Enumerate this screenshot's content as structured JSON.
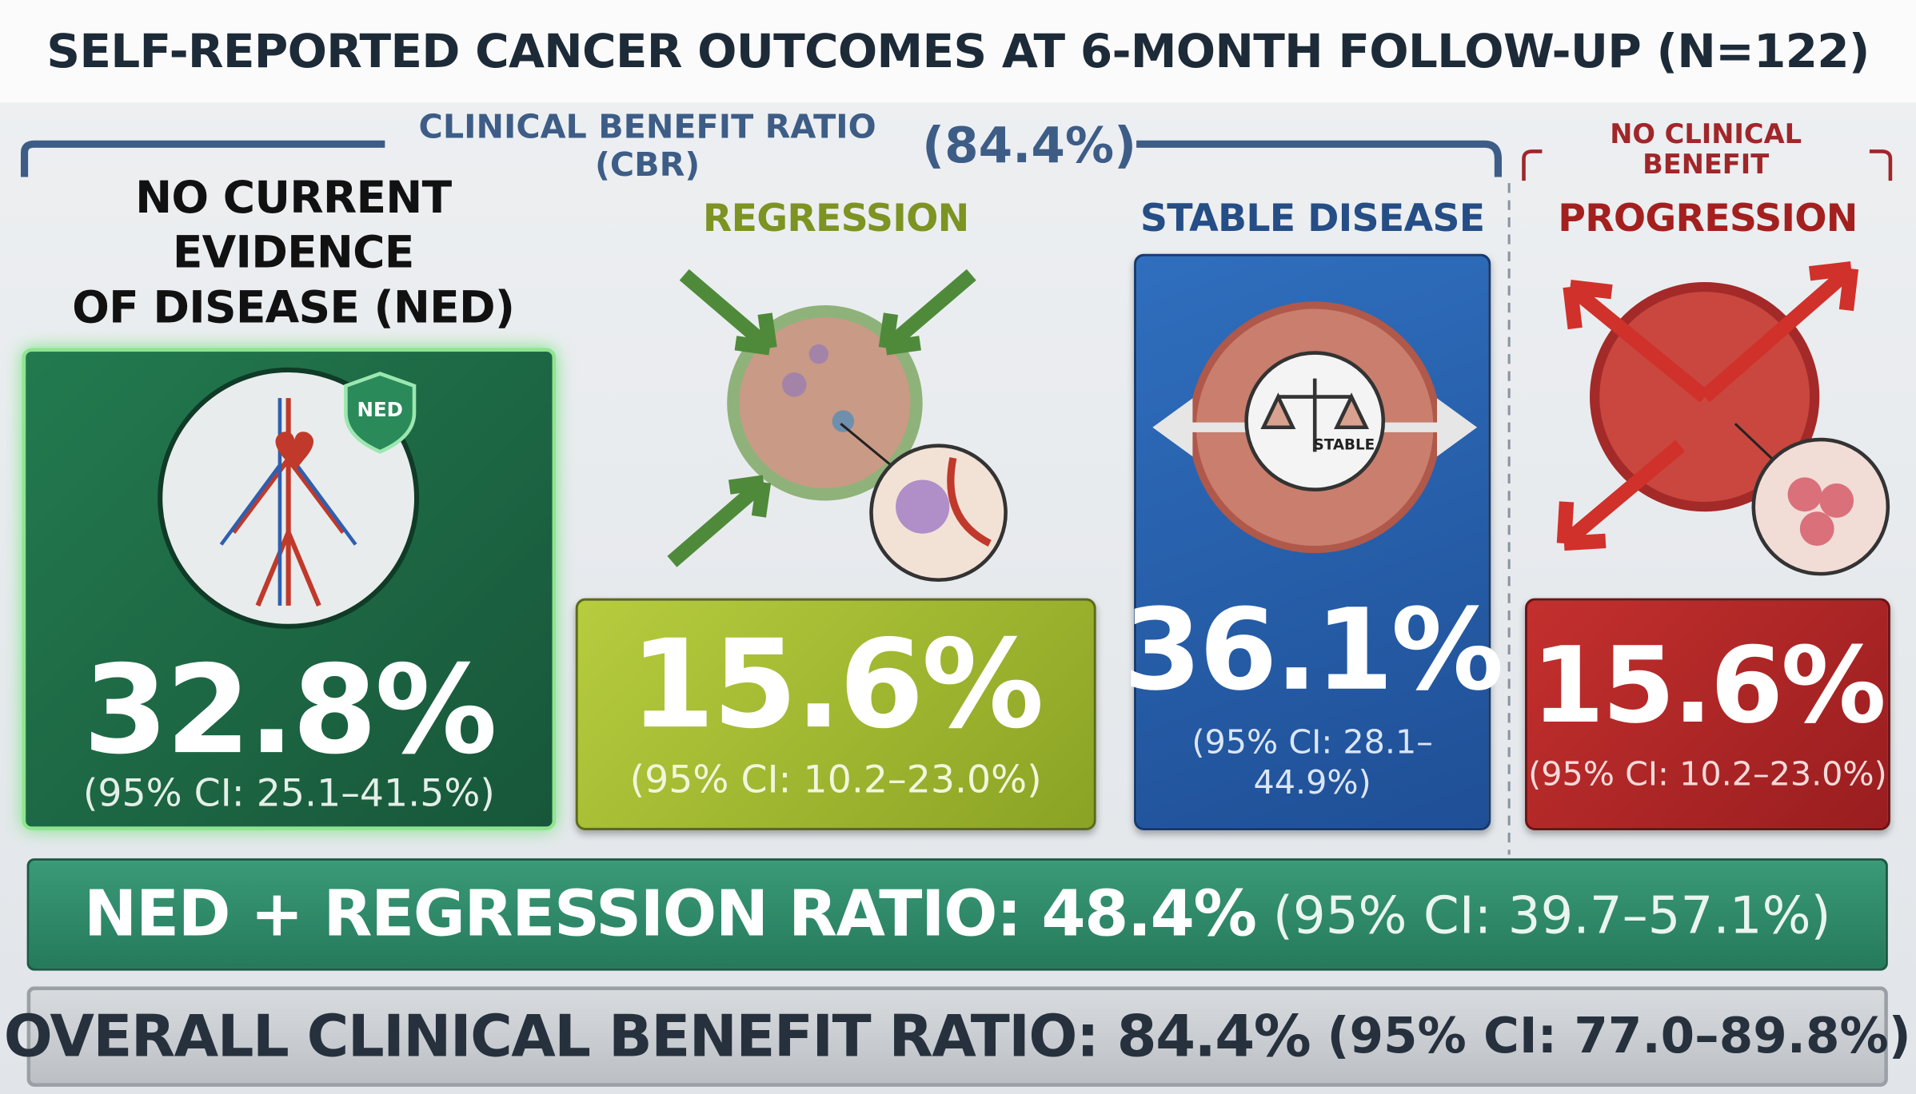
{
  "title": "SELF-REPORTED CANCER OUTCOMES AT 6-MONTH FOLLOW-UP (N=122)",
  "cbr_bracket": {
    "label": "CLINICAL BENEFIT RATIO (CBR)",
    "value": "(84.4%)"
  },
  "ncb_bracket": {
    "label": "NO CLINICAL BENEFIT"
  },
  "panels": [
    {
      "heading": [
        "NO CURRENT EVIDENCE",
        "OF DISEASE (NED)"
      ],
      "badge": "NED",
      "value": "32.8%",
      "ci": "(95% CI: 25.1–41.5%)"
    },
    {
      "heading": [
        "REGRESSION"
      ],
      "value": "15.6%",
      "ci": "(95% CI: 10.2–23.0%)"
    },
    {
      "heading": [
        "STABLE DISEASE"
      ],
      "badge": "STABLE",
      "value": "36.1%",
      "ci": "(95% CI: 28.1–44.9%)"
    },
    {
      "heading": [
        "PROGRESSION"
      ],
      "value": "15.6%",
      "ci": "(95% CI: 10.2–23.0%)"
    }
  ],
  "summary": [
    {
      "label": "NED + REGRESSION RATIO: 48.4%",
      "ci": "(95% CI: 39.7–57.1%)"
    },
    {
      "label": "OVERALL CLINICAL BENEFIT RATIO: 84.4%",
      "ci": "(95% CI: 77.0–89.8%)"
    }
  ]
}
